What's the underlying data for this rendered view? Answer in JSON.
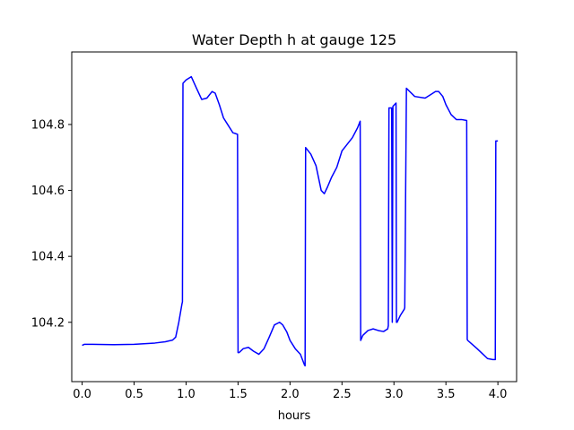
{
  "chart_data": {
    "type": "line",
    "title": "Water Depth h at gauge 125",
    "xlabel": "hours",
    "ylabel": "",
    "xlim": [
      -0.1,
      4.18
    ],
    "ylim": [
      104.02,
      105.02
    ],
    "xticks": [
      0.0,
      0.5,
      1.0,
      1.5,
      2.0,
      2.5,
      3.0,
      3.5,
      4.0
    ],
    "xtick_labels": [
      "0.0",
      "0.5",
      "1.0",
      "1.5",
      "2.0",
      "2.5",
      "3.0",
      "3.5",
      "4.0"
    ],
    "yticks": [
      104.2,
      104.4,
      104.6,
      104.8
    ],
    "ytick_labels": [
      "104.2",
      "104.4",
      "104.6",
      "104.8"
    ],
    "grid": false,
    "legend": "none",
    "series": [
      {
        "color": "#0000ff",
        "x": [
          0.0,
          0.02,
          0.1,
          0.3,
          0.5,
          0.7,
          0.8,
          0.87,
          0.9,
          0.93,
          0.96,
          0.965,
          0.97,
          1.0,
          1.05,
          1.1,
          1.15,
          1.2,
          1.25,
          1.28,
          1.32,
          1.36,
          1.4,
          1.45,
          1.48,
          1.495,
          1.5,
          1.51,
          1.55,
          1.6,
          1.65,
          1.7,
          1.75,
          1.8,
          1.85,
          1.9,
          1.93,
          1.97,
          2.0,
          2.05,
          2.1,
          2.14,
          2.145,
          2.15,
          2.2,
          2.25,
          2.3,
          2.33,
          2.36,
          2.4,
          2.45,
          2.5,
          2.55,
          2.6,
          2.65,
          2.675,
          2.68,
          2.7,
          2.75,
          2.8,
          2.85,
          2.9,
          2.94,
          2.946,
          2.952,
          2.978,
          2.984,
          2.99,
          3.02,
          3.024,
          3.03,
          3.06,
          3.1,
          3.104,
          3.12,
          3.2,
          3.3,
          3.35,
          3.4,
          3.43,
          3.47,
          3.5,
          3.55,
          3.6,
          3.65,
          3.7,
          3.705,
          3.71,
          3.8,
          3.85,
          3.9,
          3.95,
          3.97,
          3.975,
          3.98,
          4.0
        ],
        "y": [
          104.13,
          104.133,
          104.133,
          104.132,
          104.133,
          104.137,
          104.141,
          104.146,
          104.155,
          104.2,
          104.255,
          104.262,
          104.925,
          104.935,
          104.945,
          104.91,
          104.876,
          104.88,
          104.9,
          104.895,
          104.86,
          104.82,
          104.8,
          104.775,
          104.772,
          104.77,
          104.108,
          104.108,
          104.12,
          104.124,
          104.112,
          104.103,
          104.12,
          104.155,
          104.192,
          104.2,
          104.192,
          104.17,
          104.145,
          104.12,
          104.103,
          104.07,
          104.068,
          104.73,
          104.71,
          104.675,
          104.6,
          104.59,
          104.61,
          104.64,
          104.67,
          104.72,
          104.74,
          104.76,
          104.79,
          104.81,
          104.145,
          104.16,
          104.175,
          104.18,
          104.175,
          104.172,
          104.18,
          104.19,
          104.85,
          104.85,
          104.2,
          104.855,
          104.865,
          104.2,
          104.2,
          104.22,
          104.24,
          104.245,
          104.91,
          104.885,
          104.88,
          104.89,
          104.9,
          104.9,
          104.885,
          104.86,
          104.83,
          104.815,
          104.815,
          104.812,
          104.148,
          104.145,
          104.12,
          104.105,
          104.09,
          104.087,
          104.087,
          104.087,
          104.75,
          104.75
        ]
      }
    ]
  }
}
